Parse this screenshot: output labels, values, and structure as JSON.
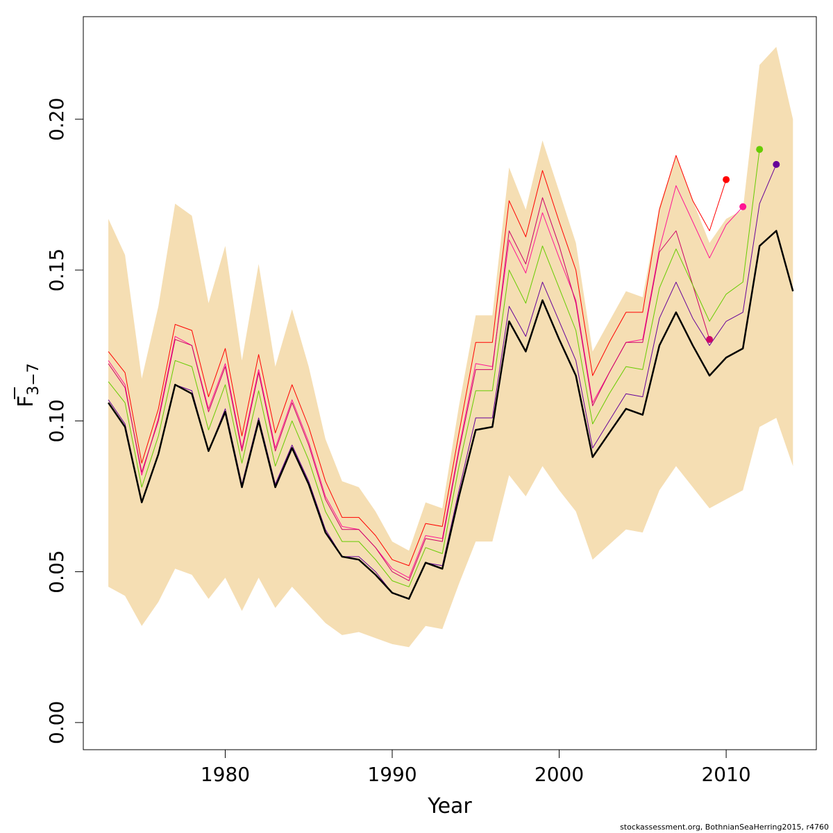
{
  "chart_data": {
    "type": "line",
    "xlabel": "Year",
    "ylabel_main": "F",
    "ylabel_sub": "3−7",
    "xlim": [
      1971.5,
      2015.4
    ],
    "ylim": [
      -0.009,
      0.234
    ],
    "xticks": [
      1980,
      1990,
      2000,
      2010
    ],
    "yticks": [
      0.0,
      0.05,
      0.1,
      0.15,
      0.2
    ],
    "ytick_labels": [
      "0.00",
      "0.05",
      "0.10",
      "0.15",
      "0.20"
    ],
    "grid": false,
    "band_color": "#F5DEB3",
    "band": {
      "x": [
        1973,
        1974,
        1975,
        1976,
        1977,
        1978,
        1979,
        1980,
        1981,
        1982,
        1983,
        1984,
        1985,
        1986,
        1987,
        1988,
        1989,
        1990,
        1991,
        1992,
        1993,
        1994,
        1995,
        1996,
        1997,
        1998,
        1999,
        2000,
        2001,
        2002,
        2003,
        2004,
        2005,
        2006,
        2007,
        2008,
        2009,
        2010,
        2011,
        2012,
        2013,
        2014
      ],
      "upper": [
        0.167,
        0.155,
        0.114,
        0.138,
        0.172,
        0.168,
        0.139,
        0.158,
        0.12,
        0.152,
        0.118,
        0.137,
        0.118,
        0.094,
        0.08,
        0.078,
        0.07,
        0.06,
        0.057,
        0.073,
        0.071,
        0.105,
        0.135,
        0.135,
        0.184,
        0.17,
        0.193,
        0.176,
        0.159,
        0.123,
        0.133,
        0.143,
        0.141,
        0.171,
        0.188,
        0.173,
        0.159,
        0.167,
        0.17,
        0.218,
        0.224,
        0.2
      ],
      "lower": [
        0.045,
        0.042,
        0.032,
        0.04,
        0.051,
        0.049,
        0.041,
        0.048,
        0.037,
        0.048,
        0.038,
        0.045,
        0.039,
        0.033,
        0.029,
        0.03,
        0.028,
        0.026,
        0.025,
        0.032,
        0.031,
        0.046,
        0.06,
        0.06,
        0.082,
        0.075,
        0.085,
        0.077,
        0.07,
        0.054,
        0.059,
        0.064,
        0.063,
        0.077,
        0.085,
        0.078,
        0.071,
        0.074,
        0.077,
        0.098,
        0.101,
        0.085
      ]
    },
    "series": [
      {
        "color": "#FF0000",
        "width": 1,
        "x": [
          1973,
          1974,
          1975,
          1976,
          1977,
          1978,
          1979,
          1980,
          1981,
          1982,
          1983,
          1984,
          1985,
          1986,
          1987,
          1988,
          1989,
          1990,
          1991,
          1992,
          1993,
          1994,
          1995,
          1996,
          1997,
          1998,
          1999,
          2000,
          2001,
          2002,
          2003,
          2004,
          2005,
          2006,
          2007,
          2008,
          2009,
          2010
        ],
        "values": [
          0.123,
          0.116,
          0.086,
          0.104,
          0.132,
          0.13,
          0.108,
          0.124,
          0.095,
          0.122,
          0.096,
          0.112,
          0.098,
          0.08,
          0.068,
          0.068,
          0.062,
          0.054,
          0.052,
          0.066,
          0.065,
          0.096,
          0.126,
          0.126,
          0.173,
          0.161,
          0.183,
          0.166,
          0.15,
          0.115,
          0.126,
          0.136,
          0.136,
          0.17,
          0.188,
          0.173,
          0.163,
          0.18
        ],
        "endpoint": true
      },
      {
        "color": "#FF1493",
        "width": 1,
        "x": [
          1973,
          1974,
          1975,
          1976,
          1977,
          1978,
          1979,
          1980,
          1981,
          1982,
          1983,
          1984,
          1985,
          1986,
          1987,
          1988,
          1989,
          1990,
          1991,
          1992,
          1993,
          1994,
          1995,
          1996,
          1997,
          1998,
          1999,
          2000,
          2001,
          2002,
          2003,
          2004,
          2005,
          2006,
          2007,
          2008,
          2009,
          2010,
          2011
        ],
        "values": [
          0.12,
          0.112,
          0.082,
          0.101,
          0.128,
          0.125,
          0.104,
          0.119,
          0.091,
          0.117,
          0.091,
          0.107,
          0.093,
          0.075,
          0.065,
          0.064,
          0.058,
          0.051,
          0.048,
          0.062,
          0.061,
          0.091,
          0.119,
          0.118,
          0.16,
          0.149,
          0.169,
          0.154,
          0.14,
          0.106,
          0.116,
          0.126,
          0.127,
          0.157,
          0.178,
          0.166,
          0.154,
          0.165,
          0.171
        ],
        "endpoint": true
      },
      {
        "color": "#CC0066",
        "width": 1,
        "x": [
          1973,
          1974,
          1975,
          1976,
          1977,
          1978,
          1979,
          1980,
          1981,
          1982,
          1983,
          1984,
          1985,
          1986,
          1987,
          1988,
          1989,
          1990,
          1991,
          1992,
          1993,
          1994,
          1995,
          1996,
          1997,
          1998,
          1999,
          2000,
          2001,
          2002,
          2003,
          2004,
          2005,
          2006,
          2007,
          2008,
          2009
        ],
        "values": [
          0.119,
          0.111,
          0.083,
          0.1,
          0.127,
          0.125,
          0.103,
          0.118,
          0.09,
          0.116,
          0.09,
          0.106,
          0.092,
          0.074,
          0.064,
          0.064,
          0.058,
          0.05,
          0.047,
          0.061,
          0.06,
          0.09,
          0.117,
          0.117,
          0.163,
          0.152,
          0.174,
          0.158,
          0.139,
          0.105,
          0.116,
          0.126,
          0.126,
          0.156,
          0.163,
          0.145,
          0.127
        ],
        "endpoint": true
      },
      {
        "color": "#66CC00",
        "width": 1,
        "x": [
          1973,
          1974,
          1975,
          1976,
          1977,
          1978,
          1979,
          1980,
          1981,
          1982,
          1983,
          1984,
          1985,
          1986,
          1987,
          1988,
          1989,
          1990,
          1991,
          1992,
          1993,
          1994,
          1995,
          1996,
          1997,
          1998,
          1999,
          2000,
          2001,
          2002,
          2003,
          2004,
          2005,
          2006,
          2007,
          2008,
          2009,
          2010,
          2011,
          2012
        ],
        "values": [
          0.113,
          0.106,
          0.078,
          0.095,
          0.12,
          0.118,
          0.097,
          0.112,
          0.086,
          0.11,
          0.085,
          0.1,
          0.087,
          0.07,
          0.06,
          0.06,
          0.054,
          0.047,
          0.045,
          0.058,
          0.056,
          0.085,
          0.11,
          0.11,
          0.15,
          0.139,
          0.158,
          0.144,
          0.13,
          0.099,
          0.109,
          0.118,
          0.117,
          0.144,
          0.157,
          0.145,
          0.133,
          0.142,
          0.146,
          0.19
        ],
        "endpoint": true
      },
      {
        "color": "#660099",
        "width": 1,
        "x": [
          1973,
          1974,
          1975,
          1976,
          1977,
          1978,
          1979,
          1980,
          1981,
          1982,
          1983,
          1984,
          1985,
          1986,
          1987,
          1988,
          1989,
          1990,
          1991,
          1992,
          1993,
          1994,
          1995,
          1996,
          1997,
          1998,
          1999,
          2000,
          2001,
          2002,
          2003,
          2004,
          2005,
          2006,
          2007,
          2008,
          2009,
          2010,
          2011,
          2012,
          2013
        ],
        "values": [
          0.107,
          0.099,
          0.073,
          0.089,
          0.112,
          0.11,
          0.09,
          0.104,
          0.079,
          0.101,
          0.079,
          0.092,
          0.08,
          0.064,
          0.055,
          0.055,
          0.05,
          0.043,
          0.041,
          0.053,
          0.052,
          0.077,
          0.101,
          0.101,
          0.138,
          0.128,
          0.146,
          0.133,
          0.12,
          0.091,
          0.1,
          0.109,
          0.108,
          0.134,
          0.146,
          0.134,
          0.125,
          0.133,
          0.136,
          0.172,
          0.185
        ],
        "endpoint": true
      },
      {
        "color": "#000000",
        "width": 2.5,
        "x": [
          1973,
          1974,
          1975,
          1976,
          1977,
          1978,
          1979,
          1980,
          1981,
          1982,
          1983,
          1984,
          1985,
          1986,
          1987,
          1988,
          1989,
          1990,
          1991,
          1992,
          1993,
          1994,
          1995,
          1996,
          1997,
          1998,
          1999,
          2000,
          2001,
          2002,
          2003,
          2004,
          2005,
          2006,
          2007,
          2008,
          2009,
          2010,
          2011,
          2012,
          2013,
          2014
        ],
        "values": [
          0.106,
          0.098,
          0.073,
          0.089,
          0.112,
          0.109,
          0.09,
          0.103,
          0.078,
          0.1,
          0.078,
          0.091,
          0.079,
          0.063,
          0.055,
          0.054,
          0.049,
          0.043,
          0.041,
          0.053,
          0.051,
          0.075,
          0.097,
          0.098,
          0.133,
          0.123,
          0.14,
          0.127,
          0.115,
          0.088,
          0.096,
          0.104,
          0.102,
          0.125,
          0.136,
          0.125,
          0.115,
          0.121,
          0.124,
          0.158,
          0.163,
          0.143
        ],
        "endpoint": false
      }
    ]
  },
  "footer": "stockassessment.org, BothnianSeaHerring2015, r4760"
}
